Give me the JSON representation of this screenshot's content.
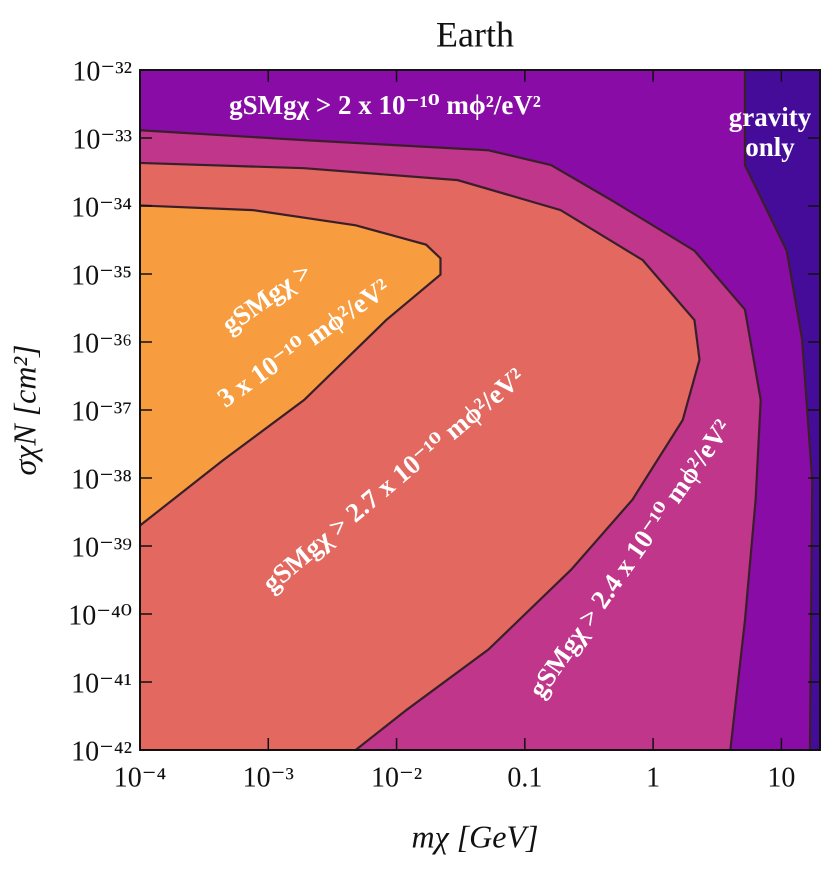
{
  "chart_data": {
    "type": "contour",
    "title": "Earth",
    "x_label": "mχ [GeV]",
    "y_label": "σχN [cm²]",
    "xscale": "log",
    "yscale": "log",
    "xlim": [
      0.0001,
      20
    ],
    "ylim": [
      1e-42,
      1e-32
    ],
    "xticks": [
      {
        "value": 0.0001,
        "label": "10⁻⁴"
      },
      {
        "value": 0.001,
        "label": "10⁻³"
      },
      {
        "value": 0.01,
        "label": "10⁻²"
      },
      0.1,
      1,
      10
    ],
    "yticks": [
      {
        "value": 1e-42,
        "label": "10⁻⁴²"
      },
      {
        "value": 1e-41,
        "label": "10⁻⁴¹"
      },
      {
        "value": 1e-40,
        "label": "10⁻⁴⁰"
      },
      {
        "value": 1e-39,
        "label": "10⁻³⁹"
      },
      {
        "value": 1e-38,
        "label": "10⁻³⁸"
      },
      {
        "value": 1e-37,
        "label": "10⁻³⁷"
      },
      {
        "value": 1e-36,
        "label": "10⁻³⁶"
      },
      {
        "value": 1e-35,
        "label": "10⁻³⁵"
      },
      {
        "value": 1e-34,
        "label": "10⁻³⁴"
      },
      {
        "value": 1e-33,
        "label": "10⁻³³"
      },
      {
        "value": 1e-32,
        "label": "10⁻³²"
      }
    ],
    "background_color": "#8a0ca6",
    "contours": [
      {
        "color": "#450c9a",
        "x": [
          5.2,
          5.2,
          11,
          14.5,
          17.4,
          16.7
        ],
        "y": [
          1e-32,
          4e-34,
          2.2e-35,
          1.1e-36,
          9.3e-39,
          1e-42
        ]
      },
      {
        "color": "#c0368a",
        "x": [
          0.0001,
          0.0019,
          0.052,
          0.16,
          0.48,
          2.1,
          5.2,
          6.9,
          6.3,
          5.2,
          4.0
        ],
        "y": [
          1.3e-33,
          9.3e-34,
          6.6e-34,
          4e-34,
          1.2e-34,
          2.2e-35,
          3e-36,
          1.4e-37,
          4.8e-39,
          8.1e-41,
          1e-42
        ]
      },
      {
        "color": "#e3685f",
        "x": [
          0.0001,
          0.0019,
          0.03,
          0.19,
          0.83,
          2.1,
          2.3,
          1.7,
          0.69,
          0.23,
          0.052,
          0.012,
          0.0048
        ],
        "y": [
          4.3e-34,
          3.6e-34,
          2.4e-34,
          8.7e-35,
          1.6e-35,
          2.1e-36,
          5.5e-37,
          7.1e-38,
          4.8e-39,
          4.5e-40,
          3e-41,
          3.9e-42,
          1e-42
        ]
      },
      {
        "color": "#f89d3f",
        "x": [
          0.0001,
          0.00076,
          0.0048,
          0.017,
          0.022,
          0.022,
          0.0083,
          0.0019,
          0.00044,
          0.0001
        ],
        "y": [
          1.02e-34,
          8.7e-35,
          5.2e-35,
          2.7e-35,
          1.7e-35,
          9.8e-36,
          2.1e-36,
          1.4e-37,
          1.8e-38,
          2e-39
        ]
      }
    ],
    "annotations": [
      "gSMgχ > 2 x 10⁻¹⁰ mϕ²/eV²",
      "gravity",
      "only",
      "gSMgχ >",
      "3 x 10⁻¹⁰ mϕ²/eV²",
      "gSMgχ > 2.7 x 10⁻¹⁰ mϕ²/eV²",
      "gSMgχ > 2.4 x 10⁻¹⁰ mϕ²/eV²"
    ]
  }
}
